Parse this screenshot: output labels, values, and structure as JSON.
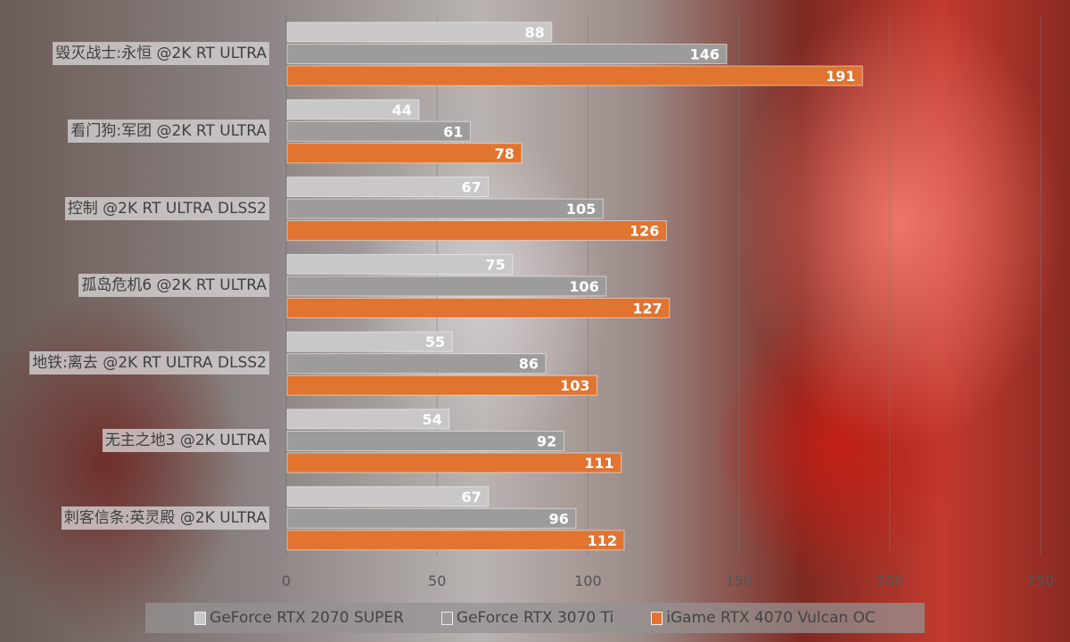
{
  "chart_data": {
    "type": "bar",
    "orientation": "horizontal",
    "categories": [
      "毁灭战士:永恒 @2K RT ULTRA",
      "看门狗:军团 @2K RT ULTRA",
      "控制 @2K RT ULTRA DLSS2",
      "孤岛危机6 @2K RT ULTRA",
      "地铁:离去 @2K RT ULTRA DLSS2",
      "无主之地3 @2K ULTRA",
      "刺客信条:英灵殿 @2K ULTRA"
    ],
    "series": [
      {
        "name": "GeForce RTX 2070 SUPER",
        "color": "#c9c7c7",
        "values": [
          88,
          44,
          67,
          75,
          55,
          54,
          67
        ]
      },
      {
        "name": "GeForce RTX 3070 Ti",
        "color": "#9e9c9b",
        "values": [
          146,
          61,
          105,
          106,
          86,
          92,
          96
        ]
      },
      {
        "name": "iGame RTX 4070 Vulcan OC",
        "color": "#e07430",
        "values": [
          191,
          78,
          126,
          127,
          103,
          111,
          112
        ]
      }
    ],
    "xlim": [
      0,
      250
    ],
    "xticks": [
      "0",
      "50",
      "100",
      "150",
      "200",
      "250"
    ],
    "grid": true,
    "data_labels": true,
    "legend_position": "bottom"
  }
}
